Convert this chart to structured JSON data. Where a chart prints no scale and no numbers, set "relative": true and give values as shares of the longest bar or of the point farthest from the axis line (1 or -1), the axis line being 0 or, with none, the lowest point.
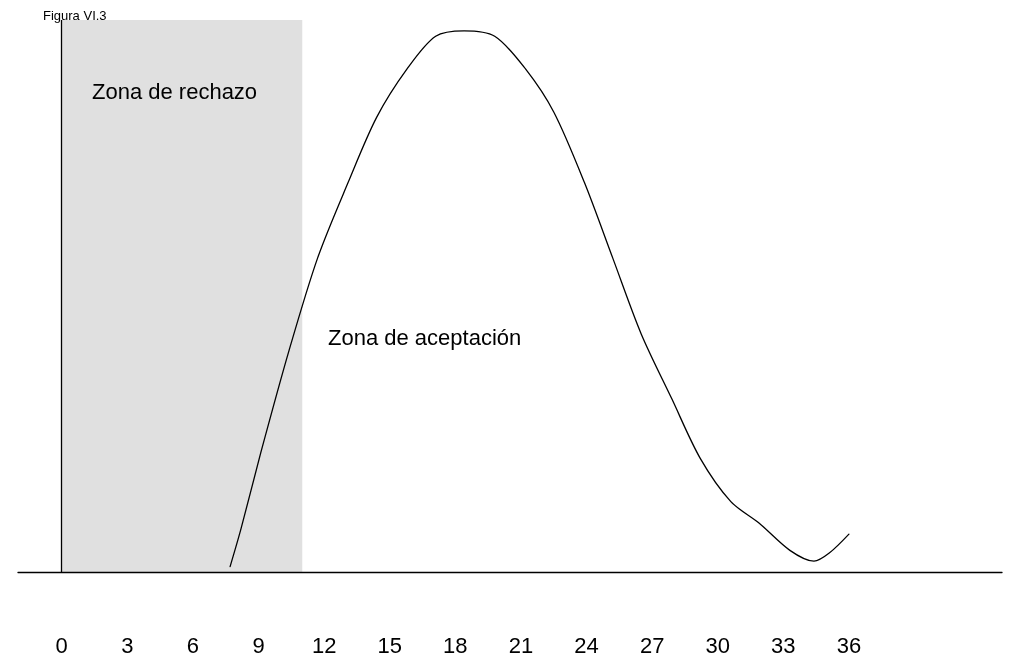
{
  "chart_data": {
    "type": "line",
    "title": "Figura VI.3",
    "relative": true,
    "xlim": [
      -2,
      43
    ],
    "xticks": [
      0,
      3,
      6,
      9,
      12,
      15,
      18,
      21,
      24,
      27,
      30,
      33,
      36
    ],
    "grid": false,
    "marker": "none",
    "line_style": "solid",
    "series": [
      {
        "color": "#000000",
        "x": [
          7.7,
          8.2,
          9.1,
          10.4,
          11.7,
          13.1,
          14.4,
          15.8,
          17.1,
          18.4,
          19.8,
          21.2,
          22.5,
          23.9,
          25.2,
          26.5,
          27.9,
          29.2,
          30.6,
          31.9,
          33.3,
          34.4,
          35.1,
          36.0
        ],
        "values": [
          0.01,
          0.08,
          0.22,
          0.41,
          0.58,
          0.72,
          0.84,
          0.93,
          0.99,
          1.0,
          0.99,
          0.93,
          0.85,
          0.72,
          0.58,
          0.44,
          0.32,
          0.21,
          0.13,
          0.09,
          0.04,
          0.02,
          0.035,
          0.07
        ]
      }
    ],
    "bands": [
      {
        "axis": "x",
        "from": 0,
        "to": 11,
        "label": "Zona de rechazo",
        "color": "#000000"
      }
    ],
    "ref_lines": [
      {
        "axis": "x",
        "value": 0
      }
    ],
    "annotations": [
      "Zona de aceptación"
    ]
  }
}
